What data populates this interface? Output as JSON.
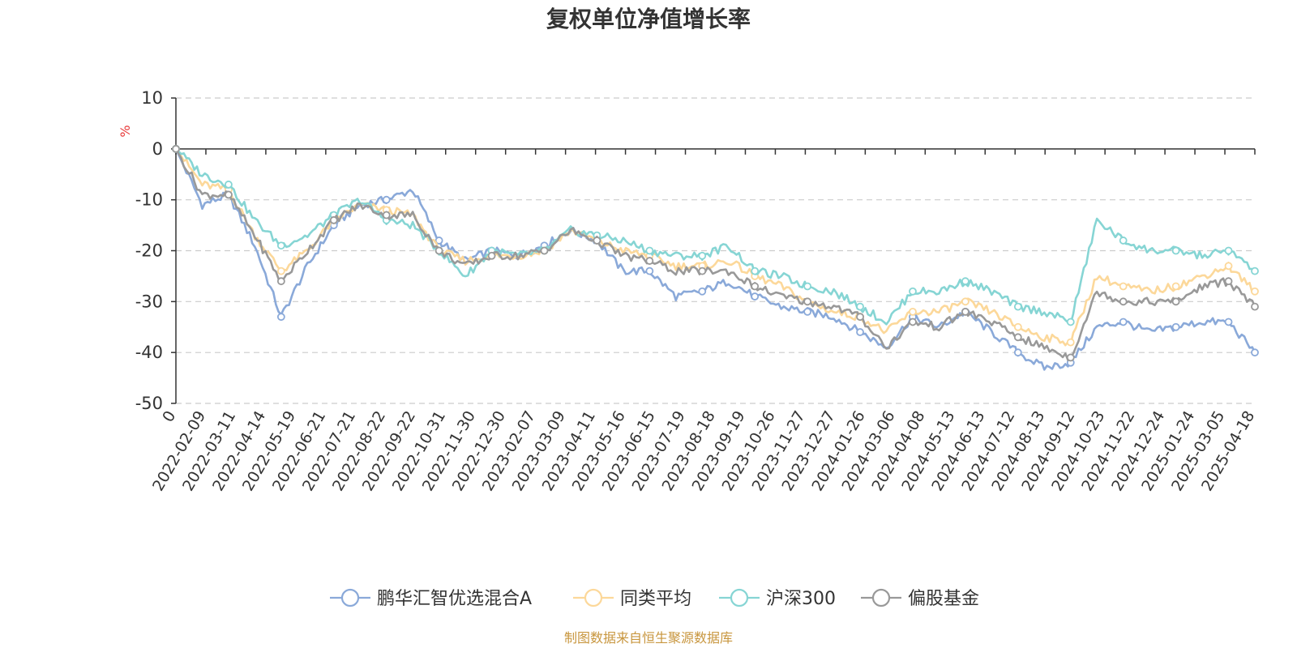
{
  "chart_data": {
    "type": "line",
    "title": "复权单位净值增长率",
    "ylabel": "%",
    "ylim": [
      -50,
      10
    ],
    "yticks": [
      10,
      0,
      -10,
      -20,
      -30,
      -40,
      -50
    ],
    "x_tick_labels": [
      "0",
      "2022-02-09",
      "2022-03-11",
      "2022-04-14",
      "2022-05-19",
      "2022-06-21",
      "2022-07-21",
      "2022-08-22",
      "2022-09-22",
      "2022-10-31",
      "2022-11-30",
      "2022-12-30",
      "2023-02-07",
      "2023-03-09",
      "2023-04-11",
      "2023-05-16",
      "2023-06-15",
      "2023-07-19",
      "2023-08-18",
      "2023-09-19",
      "2023-10-26",
      "2023-11-27",
      "2023-12-27",
      "2024-01-26",
      "2024-03-06",
      "2024-04-08",
      "2024-05-13",
      "2024-06-13",
      "2024-07-12",
      "2024-08-13",
      "2024-09-12",
      "2024-10-23",
      "2024-11-22",
      "2024-12-24",
      "2025-01-24",
      "2025-03-05",
      "2025-04-18"
    ],
    "grid": true,
    "legend_position": "bottom",
    "series": [
      {
        "name": "鹏华汇智优选混合A",
        "color": "#8aa9d9",
        "values": [
          0,
          -11,
          -9,
          -19,
          -33,
          -23,
          -15,
          -11,
          -10,
          -8,
          -18,
          -22,
          -20,
          -21,
          -19,
          -16,
          -18,
          -24,
          -24,
          -29,
          -28,
          -26,
          -29,
          -31,
          -32,
          -33,
          -36,
          -39,
          -33,
          -35,
          -32,
          -36,
          -40,
          -43,
          -42,
          -35,
          -34,
          -36,
          -35,
          -34,
          -34,
          -40
        ]
      },
      {
        "name": "同类平均",
        "color": "#fcd89a",
        "values": [
          0,
          -7,
          -8,
          -17,
          -24,
          -20,
          -14,
          -11,
          -12,
          -13,
          -20,
          -22,
          -21,
          -21,
          -20,
          -16,
          -18,
          -20,
          -21,
          -23,
          -23,
          -22,
          -25,
          -27,
          -30,
          -32,
          -33,
          -36,
          -32,
          -32,
          -30,
          -32,
          -35,
          -37,
          -38,
          -25,
          -27,
          -28,
          -27,
          -25,
          -23,
          -28
        ]
      },
      {
        "name": "沪深300",
        "color": "#86d5d4",
        "values": [
          0,
          -5,
          -7,
          -14,
          -19,
          -17,
          -13,
          -10,
          -14,
          -15,
          -20,
          -25,
          -20,
          -21,
          -20,
          -16,
          -17,
          -18,
          -20,
          -21,
          -21,
          -19,
          -24,
          -25,
          -27,
          -28,
          -31,
          -34,
          -28,
          -28,
          -26,
          -28,
          -31,
          -32,
          -34,
          -14,
          -18,
          -20,
          -20,
          -21,
          -20,
          -24
        ]
      },
      {
        "name": "偏股基金",
        "color": "#999999",
        "values": [
          0,
          -9,
          -9,
          -17,
          -26,
          -20,
          -14,
          -11,
          -13,
          -13,
          -20,
          -23,
          -21,
          -21,
          -20,
          -16,
          -18,
          -21,
          -22,
          -24,
          -24,
          -24,
          -27,
          -29,
          -30,
          -31,
          -33,
          -39,
          -34,
          -35,
          -32,
          -34,
          -37,
          -39,
          -41,
          -28,
          -30,
          -30,
          -30,
          -27,
          -26,
          -31
        ]
      }
    ]
  },
  "source": "制图数据来自恒生聚源数据库"
}
